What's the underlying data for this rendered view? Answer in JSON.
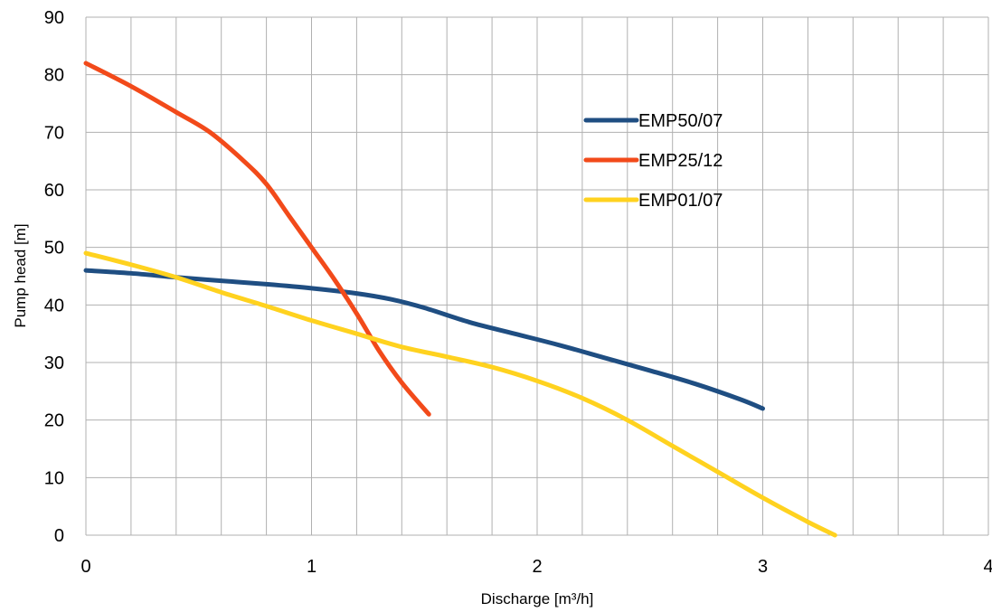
{
  "chart_data": {
    "type": "line",
    "title": "",
    "xlabel": "Discharge [m³/h]",
    "ylabel": "Pump head [m]",
    "xlim": [
      0,
      4
    ],
    "ylim": [
      0,
      90
    ],
    "x_ticks": [
      0,
      1,
      2,
      3,
      4
    ],
    "y_ticks": [
      0,
      10,
      20,
      30,
      40,
      50,
      60,
      70,
      80,
      90
    ],
    "x_minor_step": 0.2,
    "grid": true,
    "legend_position": "right, upper",
    "grid_color": "#b0b0b0",
    "series": [
      {
        "name": "EMP50/07",
        "color": "#1f4e82",
        "points": [
          [
            0,
            46
          ],
          [
            0.2,
            45.5
          ],
          [
            0.4,
            44.8
          ],
          [
            0.6,
            44.2
          ],
          [
            0.8,
            43.6
          ],
          [
            1.0,
            42.9
          ],
          [
            1.2,
            42
          ],
          [
            1.35,
            41
          ],
          [
            1.5,
            39.5
          ],
          [
            1.7,
            37
          ],
          [
            1.9,
            35
          ],
          [
            2.1,
            33
          ],
          [
            2.3,
            30.8
          ],
          [
            2.5,
            28.6
          ],
          [
            2.7,
            26.3
          ],
          [
            2.9,
            23.6
          ],
          [
            3.0,
            22
          ]
        ]
      },
      {
        "name": "EMP25/12",
        "color": "#f24a1a",
        "points": [
          [
            0,
            82
          ],
          [
            0.2,
            78
          ],
          [
            0.4,
            73.5
          ],
          [
            0.55,
            70
          ],
          [
            0.7,
            65
          ],
          [
            0.8,
            61
          ],
          [
            0.9,
            55.5
          ],
          [
            1.0,
            50
          ],
          [
            1.1,
            44.5
          ],
          [
            1.2,
            38.5
          ],
          [
            1.3,
            32
          ],
          [
            1.4,
            26.5
          ],
          [
            1.52,
            21
          ]
        ]
      },
      {
        "name": "EMP01/07",
        "color": "#ffd21f",
        "points": [
          [
            0,
            49
          ],
          [
            0.2,
            47
          ],
          [
            0.4,
            44.8
          ],
          [
            0.6,
            42.2
          ],
          [
            0.8,
            39.8
          ],
          [
            1.0,
            37.3
          ],
          [
            1.2,
            35
          ],
          [
            1.4,
            32.7
          ],
          [
            1.6,
            31
          ],
          [
            1.8,
            29.2
          ],
          [
            2.0,
            26.8
          ],
          [
            2.2,
            23.8
          ],
          [
            2.4,
            20
          ],
          [
            2.6,
            15.5
          ],
          [
            2.8,
            11
          ],
          [
            3.0,
            6.5
          ],
          [
            3.2,
            2.3
          ],
          [
            3.32,
            0
          ]
        ]
      }
    ]
  }
}
